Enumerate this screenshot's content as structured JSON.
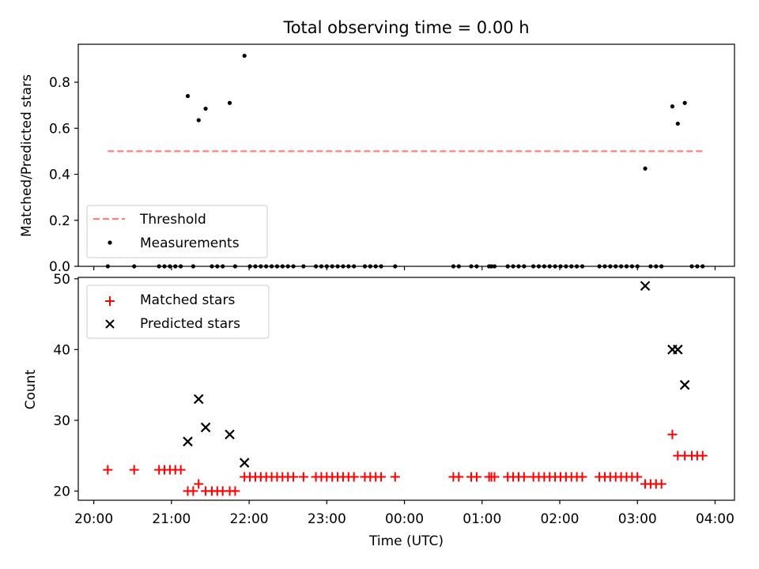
{
  "figure": {
    "title": "Total observing time = 0.00 h"
  },
  "chart_data": [
    {
      "type": "scatter",
      "ylabel": "Matched/Predicted stars",
      "ylim": [
        0,
        0.965
      ],
      "yticks": [
        0.0,
        0.2,
        0.4,
        0.6,
        0.8
      ],
      "ytick_labels": [
        "0.0",
        "0.2",
        "0.4",
        "0.6",
        "0.8"
      ],
      "xlim_hours": [
        -0.2,
        8.25
      ],
      "legend_placement": "lower-left",
      "grid": false,
      "threshold": {
        "name": "Threshold",
        "value": 0.5,
        "x": [
          0.18,
          7.87
        ],
        "color": "#ff8080",
        "style": "dashed"
      },
      "series": [
        {
          "name": "Measurements",
          "color": "#000000",
          "marker": "dot",
          "points": [
            [
              0.18,
              0
            ],
            [
              0.52,
              0
            ],
            [
              0.84,
              0
            ],
            [
              0.91,
              0
            ],
            [
              0.98,
              0
            ],
            [
              1.05,
              0
            ],
            [
              1.12,
              0
            ],
            [
              1.21,
              0.74
            ],
            [
              1.28,
              0
            ],
            [
              1.35,
              0.635
            ],
            [
              1.44,
              0.685
            ],
            [
              1.52,
              0
            ],
            [
              1.59,
              0
            ],
            [
              1.66,
              0
            ],
            [
              1.75,
              0.71
            ],
            [
              1.82,
              0
            ],
            [
              1.94,
              0.915
            ],
            [
              2.01,
              0
            ],
            [
              2.08,
              0
            ],
            [
              2.15,
              0
            ],
            [
              2.22,
              0
            ],
            [
              2.29,
              0
            ],
            [
              2.36,
              0
            ],
            [
              2.43,
              0
            ],
            [
              2.5,
              0
            ],
            [
              2.57,
              0
            ],
            [
              2.7,
              0
            ],
            [
              2.86,
              0
            ],
            [
              2.93,
              0
            ],
            [
              3.0,
              0
            ],
            [
              3.07,
              0
            ],
            [
              3.14,
              0
            ],
            [
              3.21,
              0
            ],
            [
              3.28,
              0
            ],
            [
              3.35,
              0
            ],
            [
              3.49,
              0
            ],
            [
              3.56,
              0
            ],
            [
              3.63,
              0
            ],
            [
              3.7,
              0
            ],
            [
              3.88,
              0
            ],
            [
              4.63,
              0
            ],
            [
              4.7,
              0
            ],
            [
              4.86,
              0
            ],
            [
              4.93,
              0
            ],
            [
              5.09,
              0
            ],
            [
              5.12,
              0
            ],
            [
              5.16,
              0
            ],
            [
              5.33,
              0
            ],
            [
              5.4,
              0
            ],
            [
              5.47,
              0
            ],
            [
              5.54,
              0
            ],
            [
              5.66,
              0
            ],
            [
              5.73,
              0
            ],
            [
              5.8,
              0
            ],
            [
              5.87,
              0
            ],
            [
              5.94,
              0
            ],
            [
              6.01,
              0
            ],
            [
              6.08,
              0
            ],
            [
              6.15,
              0
            ],
            [
              6.22,
              0
            ],
            [
              6.29,
              0
            ],
            [
              6.51,
              0
            ],
            [
              6.58,
              0
            ],
            [
              6.65,
              0
            ],
            [
              6.72,
              0
            ],
            [
              6.79,
              0
            ],
            [
              6.86,
              0
            ],
            [
              6.93,
              0
            ],
            [
              7.0,
              0
            ],
            [
              7.1,
              0.425
            ],
            [
              7.17,
              0
            ],
            [
              7.24,
              0
            ],
            [
              7.31,
              0
            ],
            [
              7.45,
              0.695
            ],
            [
              7.52,
              0.62
            ],
            [
              7.61,
              0.71
            ],
            [
              7.7,
              0
            ],
            [
              7.77,
              0
            ],
            [
              7.84,
              0
            ]
          ]
        }
      ]
    },
    {
      "type": "scatter",
      "xlabel": "Time (UTC)",
      "ylabel": "Count",
      "ylim": [
        18.7,
        50.2
      ],
      "yticks": [
        20,
        30,
        40,
        50
      ],
      "ytick_labels": [
        "20",
        "30",
        "40",
        "50"
      ],
      "xlim_hours": [
        -0.2,
        8.25
      ],
      "xticks_hours": [
        0,
        1,
        2,
        3,
        4,
        5,
        6,
        7,
        8
      ],
      "xtick_labels": [
        "20:00",
        "21:00",
        "22:00",
        "23:00",
        "00:00",
        "01:00",
        "02:00",
        "03:00",
        "04:00"
      ],
      "legend_placement": "upper-left",
      "grid": false,
      "series": [
        {
          "name": "Matched stars",
          "color": "#ff0000",
          "marker": "plus",
          "points": [
            [
              0.18,
              23
            ],
            [
              0.52,
              23
            ],
            [
              0.84,
              23
            ],
            [
              0.91,
              23
            ],
            [
              0.98,
              23
            ],
            [
              1.05,
              23
            ],
            [
              1.12,
              23
            ],
            [
              1.21,
              20
            ],
            [
              1.28,
              20
            ],
            [
              1.35,
              21
            ],
            [
              1.44,
              20
            ],
            [
              1.52,
              20
            ],
            [
              1.59,
              20
            ],
            [
              1.66,
              20
            ],
            [
              1.75,
              20
            ],
            [
              1.82,
              20
            ],
            [
              1.94,
              22
            ],
            [
              2.01,
              22
            ],
            [
              2.08,
              22
            ],
            [
              2.15,
              22
            ],
            [
              2.22,
              22
            ],
            [
              2.29,
              22
            ],
            [
              2.36,
              22
            ],
            [
              2.43,
              22
            ],
            [
              2.5,
              22
            ],
            [
              2.57,
              22
            ],
            [
              2.7,
              22
            ],
            [
              2.86,
              22
            ],
            [
              2.93,
              22
            ],
            [
              3.0,
              22
            ],
            [
              3.07,
              22
            ],
            [
              3.14,
              22
            ],
            [
              3.21,
              22
            ],
            [
              3.28,
              22
            ],
            [
              3.35,
              22
            ],
            [
              3.49,
              22
            ],
            [
              3.56,
              22
            ],
            [
              3.63,
              22
            ],
            [
              3.7,
              22
            ],
            [
              3.88,
              22
            ],
            [
              4.63,
              22
            ],
            [
              4.7,
              22
            ],
            [
              4.86,
              22
            ],
            [
              4.93,
              22
            ],
            [
              5.09,
              22
            ],
            [
              5.12,
              22
            ],
            [
              5.16,
              22
            ],
            [
              5.33,
              22
            ],
            [
              5.4,
              22
            ],
            [
              5.47,
              22
            ],
            [
              5.54,
              22
            ],
            [
              5.66,
              22
            ],
            [
              5.73,
              22
            ],
            [
              5.8,
              22
            ],
            [
              5.87,
              22
            ],
            [
              5.94,
              22
            ],
            [
              6.01,
              22
            ],
            [
              6.08,
              22
            ],
            [
              6.15,
              22
            ],
            [
              6.22,
              22
            ],
            [
              6.29,
              22
            ],
            [
              6.51,
              22
            ],
            [
              6.58,
              22
            ],
            [
              6.65,
              22
            ],
            [
              6.72,
              22
            ],
            [
              6.79,
              22
            ],
            [
              6.86,
              22
            ],
            [
              6.93,
              22
            ],
            [
              7.0,
              22
            ],
            [
              7.1,
              21
            ],
            [
              7.17,
              21
            ],
            [
              7.24,
              21
            ],
            [
              7.31,
              21
            ],
            [
              7.45,
              28
            ],
            [
              7.52,
              25
            ],
            [
              7.61,
              25
            ],
            [
              7.7,
              25
            ],
            [
              7.77,
              25
            ],
            [
              7.84,
              25
            ]
          ]
        },
        {
          "name": "Predicted stars",
          "color": "#000000",
          "marker": "x",
          "points": [
            [
              1.21,
              27
            ],
            [
              1.35,
              33
            ],
            [
              1.44,
              29
            ],
            [
              1.75,
              28
            ],
            [
              1.94,
              24
            ],
            [
              7.1,
              49
            ],
            [
              7.45,
              40
            ],
            [
              7.52,
              40
            ],
            [
              7.61,
              35
            ]
          ]
        }
      ]
    }
  ]
}
